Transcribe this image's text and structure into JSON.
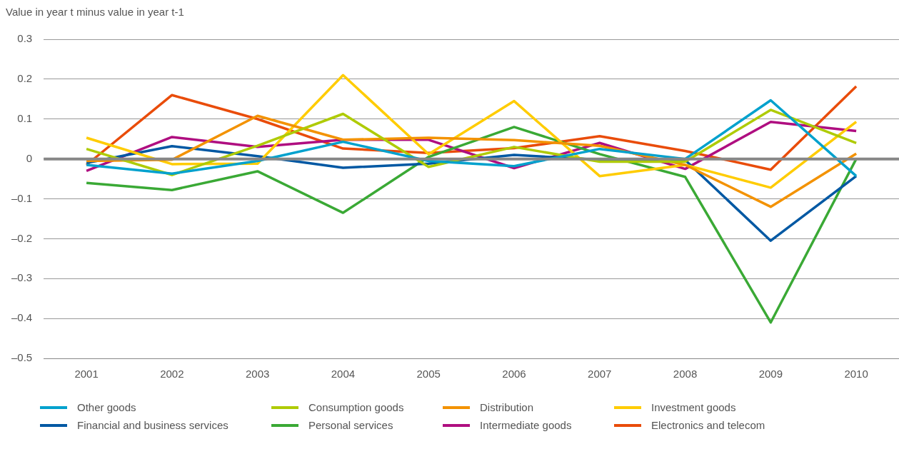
{
  "chart_data": {
    "type": "line",
    "ylabel": "Value in year t minus value in year t-1",
    "categories": [
      "2001",
      "2002",
      "2003",
      "2004",
      "2005",
      "2006",
      "2007",
      "2008",
      "2009",
      "2010"
    ],
    "series": [
      {
        "name": "Other goods",
        "color": "#00a1cd",
        "values": [
          -0.015,
          -0.037,
          -0.005,
          0.043,
          -0.005,
          -0.018,
          0.025,
          0.0,
          0.147,
          -0.043
        ]
      },
      {
        "name": "Consumption goods",
        "color": "#afcb05",
        "values": [
          0.025,
          -0.04,
          0.033,
          0.113,
          -0.02,
          0.03,
          -0.007,
          -0.007,
          0.123,
          0.04
        ]
      },
      {
        "name": "Distribution",
        "color": "#f39200",
        "values": [
          -0.005,
          -0.002,
          0.108,
          0.048,
          0.053,
          0.047,
          0.033,
          -0.015,
          -0.12,
          0.013
        ]
      },
      {
        "name": "Investment goods",
        "color": "#ffcc00",
        "values": [
          0.053,
          -0.013,
          -0.012,
          0.21,
          0.012,
          0.145,
          -0.043,
          -0.015,
          -0.072,
          0.093
        ]
      },
      {
        "name": "Financial and business services",
        "color": "#0058a3",
        "values": [
          -0.01,
          0.032,
          0.007,
          -0.022,
          -0.012,
          0.01,
          -0.002,
          -0.003,
          -0.205,
          -0.043
        ]
      },
      {
        "name": "Personal services",
        "color": "#3aa935",
        "values": [
          -0.06,
          -0.078,
          -0.031,
          -0.135,
          0.005,
          0.08,
          0.012,
          -0.045,
          -0.41,
          0.0
        ]
      },
      {
        "name": "Intermediate goods",
        "color": "#af0e80",
        "values": [
          -0.03,
          0.055,
          0.03,
          0.048,
          0.048,
          -0.023,
          0.04,
          -0.025,
          0.093,
          0.07
        ]
      },
      {
        "name": "Electronics and telecom",
        "color": "#e94c0a",
        "values": [
          -0.015,
          0.16,
          0.1,
          0.026,
          0.015,
          0.027,
          0.057,
          0.02,
          -0.027,
          0.182
        ]
      }
    ],
    "ylim": [
      -0.5,
      0.3
    ],
    "yticks": [
      {
        "value": -0.5,
        "label": "–0.5"
      },
      {
        "value": -0.4,
        "label": "–0.4"
      },
      {
        "value": -0.3,
        "label": "–0.3"
      },
      {
        "value": -0.2,
        "label": "–0.2"
      },
      {
        "value": -0.1,
        "label": "–0.1"
      },
      0,
      0.1,
      0.2,
      0.3
    ],
    "ref_lines": [
      {
        "axis": "y",
        "value": 0,
        "color": "#878787"
      }
    ],
    "grid": "y",
    "legend": "bottom",
    "marker": "none",
    "line_style": "solid"
  }
}
